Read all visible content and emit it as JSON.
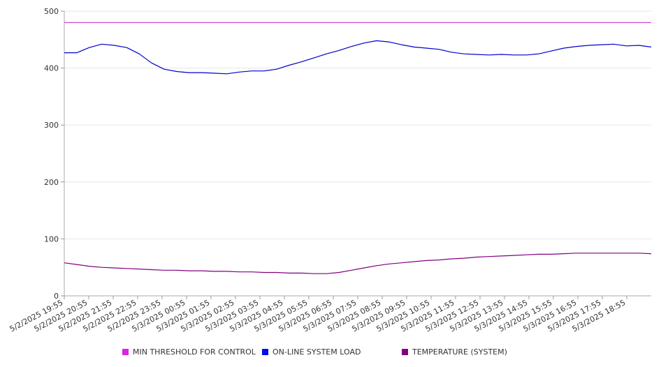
{
  "chart_data": {
    "type": "line",
    "title": "",
    "xlabel": "",
    "ylabel": "",
    "ylim": [
      0,
      500
    ],
    "yticks": [
      0,
      100,
      200,
      300,
      400,
      500
    ],
    "grid": true,
    "legend_position": "bottom",
    "x_tick_labels": [
      "5/2/2025 19:55",
      "5/2/2025 20:55",
      "5/2/2025 21:55",
      "5/2/2025 22:55",
      "5/2/2025 23:55",
      "5/3/2025 00:55",
      "5/3/2025 01:55",
      "5/3/2025 02:55",
      "5/3/2025 03:55",
      "5/3/2025 04:55",
      "5/3/2025 05:55",
      "5/3/2025 06:55",
      "5/3/2025 07:55",
      "5/3/2025 08:55",
      "5/3/2025 09:55",
      "5/3/2025 10:55",
      "5/3/2025 11:55",
      "5/3/2025 12:55",
      "5/3/2025 13:55",
      "5/3/2025 14:55",
      "5/3/2025 15:55",
      "5/3/2025 16:55",
      "5/3/2025 17:55",
      "5/3/2025 18:55"
    ],
    "x": [
      "5/2/2025 19:55",
      "5/2/2025 20:25",
      "5/2/2025 20:55",
      "5/2/2025 21:25",
      "5/2/2025 21:55",
      "5/2/2025 22:25",
      "5/2/2025 22:55",
      "5/2/2025 23:25",
      "5/2/2025 23:55",
      "5/3/2025 00:25",
      "5/3/2025 00:55",
      "5/3/2025 01:25",
      "5/3/2025 01:55",
      "5/3/2025 02:25",
      "5/3/2025 02:55",
      "5/3/2025 03:25",
      "5/3/2025 03:55",
      "5/3/2025 04:25",
      "5/3/2025 04:55",
      "5/3/2025 05:25",
      "5/3/2025 05:55",
      "5/3/2025 06:25",
      "5/3/2025 06:55",
      "5/3/2025 07:25",
      "5/3/2025 07:55",
      "5/3/2025 08:25",
      "5/3/2025 08:55",
      "5/3/2025 09:25",
      "5/3/2025 09:55",
      "5/3/2025 10:25",
      "5/3/2025 10:55",
      "5/3/2025 11:25",
      "5/3/2025 11:55",
      "5/3/2025 12:25",
      "5/3/2025 12:55",
      "5/3/2025 13:25",
      "5/3/2025 13:55",
      "5/3/2025 14:25",
      "5/3/2025 14:55",
      "5/3/2025 15:25",
      "5/3/2025 15:55",
      "5/3/2025 16:25",
      "5/3/2025 16:55",
      "5/3/2025 17:25",
      "5/3/2025 17:55",
      "5/3/2025 18:25",
      "5/3/2025 18:55",
      "5/3/2025 19:25"
    ],
    "series": [
      {
        "name": "MIN THRESHOLD FOR CONTROL",
        "color": "#cc33cc",
        "swatch": "#e020e0",
        "values": [
          480,
          480,
          480,
          480,
          480,
          480,
          480,
          480,
          480,
          480,
          480,
          480,
          480,
          480,
          480,
          480,
          480,
          480,
          480,
          480,
          480,
          480,
          480,
          480,
          480,
          480,
          480,
          480,
          480,
          480,
          480,
          480,
          480,
          480,
          480,
          480,
          480,
          480,
          480,
          480,
          480,
          480,
          480,
          480,
          480,
          480,
          480,
          480
        ]
      },
      {
        "name": "ON-LINE SYSTEM LOAD",
        "color": "#0000cc",
        "swatch": "#0010e0",
        "values": [
          427,
          427,
          436,
          442,
          440,
          436,
          425,
          409,
          398,
          394,
          392,
          392,
          391,
          390,
          393,
          395,
          395,
          398,
          405,
          411,
          418,
          425,
          431,
          438,
          444,
          448,
          446,
          441,
          437,
          435,
          433,
          428,
          425,
          424,
          423,
          424,
          423,
          423,
          425,
          430,
          435,
          438,
          440,
          441,
          442,
          439,
          440,
          437
        ]
      },
      {
        "name": "TEMPERATURE (SYSTEM)",
        "color": "#800080",
        "swatch": "#800080",
        "values": [
          58,
          55,
          52,
          50,
          49,
          48,
          47,
          46,
          45,
          45,
          44,
          44,
          43,
          43,
          42,
          42,
          41,
          41,
          40,
          40,
          39,
          39,
          41,
          45,
          49,
          53,
          56,
          58,
          60,
          62,
          63,
          65,
          66,
          68,
          69,
          70,
          71,
          72,
          73,
          73,
          74,
          75,
          75,
          75,
          75,
          75,
          75,
          74
        ]
      }
    ]
  }
}
